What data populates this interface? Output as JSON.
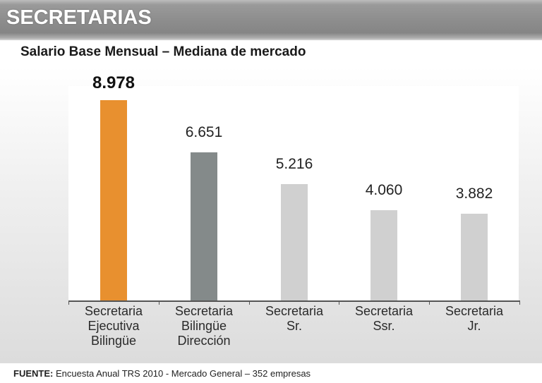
{
  "header": {
    "title": "SECRETARIAS"
  },
  "subtitle": "Salario Base Mensual – Mediana de mercado",
  "footer": {
    "label": "FUENTE:",
    "text": "Encuesta Anual TRS 2010 - Mercado General – 352 empresas"
  },
  "bars": [
    {
      "label_lines": [
        "Secretaria",
        "Ejecutiva",
        "Bilingüe"
      ],
      "value_label": "8.978",
      "color": "#e8902f"
    },
    {
      "label_lines": [
        "Secretaria",
        "Bilingüe",
        "Dirección"
      ],
      "value_label": "6.651",
      "color": "#848a8a"
    },
    {
      "label_lines": [
        "Secretaria",
        "Sr."
      ],
      "value_label": "5.216",
      "color": "#d0d0d0"
    },
    {
      "label_lines": [
        "Secretaria",
        "Ssr."
      ],
      "value_label": "4.060",
      "color": "#d0d0d0"
    },
    {
      "label_lines": [
        "Secretaria",
        "Jr."
      ],
      "value_label": "3.882",
      "color": "#d0d0d0"
    }
  ],
  "chart_data": {
    "type": "bar",
    "title": "Salario Base Mensual – Mediana de mercado",
    "subtitle": "SECRETARIAS",
    "categories": [
      "Secretaria Ejecutiva Bilingüe",
      "Secretaria Bilingüe Dirección",
      "Secretaria Sr.",
      "Secretaria Ssr.",
      "Secretaria Jr."
    ],
    "values": [
      8978,
      6651,
      5216,
      4060,
      3882
    ],
    "value_labels": [
      "8.978",
      "6.651",
      "5.216",
      "4.060",
      "3.882"
    ],
    "colors": [
      "#e8902f",
      "#848a8a",
      "#d0d0d0",
      "#d0d0d0",
      "#d0d0d0"
    ],
    "xlabel": "",
    "ylabel": "",
    "ylim": [
      0,
      10000
    ],
    "grid": false,
    "legend": "none",
    "annotations": [
      "FUENTE: Encuesta Anual TRS 2010 - Mercado General – 352 empresas"
    ]
  }
}
